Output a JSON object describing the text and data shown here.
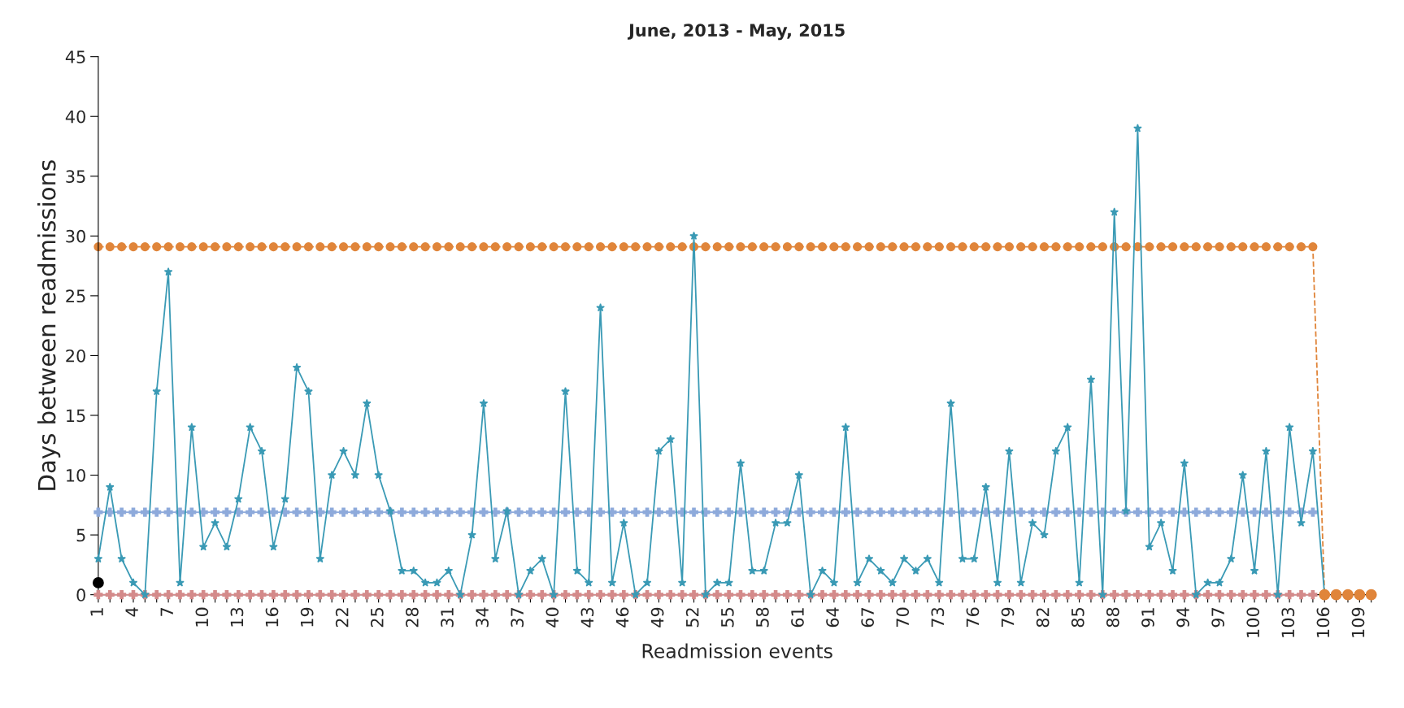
{
  "chart_data": {
    "type": "line",
    "title": "June, 2013 - May, 2015",
    "xlabel": "Readmission events",
    "ylabel": "Days between readmissions",
    "xlim": [
      1,
      110.4
    ],
    "ylim": [
      0,
      45
    ],
    "yticks": [
      0,
      5,
      10,
      15,
      20,
      25,
      30,
      35,
      40,
      45
    ],
    "xticks": [
      1,
      {
        "value": 2,
        "label": null
      },
      {
        "value": 3,
        "label": null
      },
      4,
      {
        "value": 5,
        "label": null
      },
      {
        "value": 6,
        "label": null
      },
      7,
      {
        "value": 8,
        "label": null
      },
      {
        "value": 9,
        "label": null
      },
      10,
      {
        "value": 11,
        "label": null
      },
      {
        "value": 12,
        "label": null
      },
      13,
      {
        "value": 14,
        "label": null
      },
      {
        "value": 15,
        "label": null
      },
      16,
      {
        "value": 17,
        "label": null
      },
      {
        "value": 18,
        "label": null
      },
      19,
      {
        "value": 20,
        "label": null
      },
      {
        "value": 21,
        "label": null
      },
      22,
      {
        "value": 23,
        "label": null
      },
      {
        "value": 24,
        "label": null
      },
      25,
      {
        "value": 26,
        "label": null
      },
      {
        "value": 27,
        "label": null
      },
      28,
      {
        "value": 29,
        "label": null
      },
      {
        "value": 30,
        "label": null
      },
      31,
      {
        "value": 32,
        "label": null
      },
      {
        "value": 33,
        "label": null
      },
      34,
      {
        "value": 35,
        "label": null
      },
      {
        "value": 36,
        "label": null
      },
      37,
      {
        "value": 38,
        "label": null
      },
      {
        "value": 39,
        "label": null
      },
      40,
      {
        "value": 41,
        "label": null
      },
      {
        "value": 42,
        "label": null
      },
      43,
      {
        "value": 44,
        "label": null
      },
      {
        "value": 45,
        "label": null
      },
      46,
      {
        "value": 47,
        "label": null
      },
      {
        "value": 48,
        "label": null
      },
      49,
      {
        "value": 50,
        "label": null
      },
      {
        "value": 51,
        "label": null
      },
      52,
      {
        "value": 53,
        "label": null
      },
      {
        "value": 54,
        "label": null
      },
      55,
      {
        "value": 56,
        "label": null
      },
      {
        "value": 57,
        "label": null
      },
      58,
      {
        "value": 59,
        "label": null
      },
      {
        "value": 60,
        "label": null
      },
      61,
      {
        "value": 62,
        "label": null
      },
      {
        "value": 63,
        "label": null
      },
      64,
      {
        "value": 65,
        "label": null
      },
      {
        "value": 66,
        "label": null
      },
      67,
      {
        "value": 68,
        "label": null
      },
      {
        "value": 69,
        "label": null
      },
      70,
      {
        "value": 71,
        "label": null
      },
      {
        "value": 72,
        "label": null
      },
      73,
      {
        "value": 74,
        "label": null
      },
      {
        "value": 75,
        "label": null
      },
      76,
      {
        "value": 77,
        "label": null
      },
      {
        "value": 78,
        "label": null
      },
      79,
      {
        "value": 80,
        "label": null
      },
      {
        "value": 81,
        "label": null
      },
      82,
      {
        "value": 83,
        "label": null
      },
      {
        "value": 84,
        "label": null
      },
      85,
      {
        "value": 86,
        "label": null
      },
      {
        "value": 87,
        "label": null
      },
      88,
      {
        "value": 89,
        "label": null
      },
      {
        "value": 90,
        "label": null
      },
      91,
      {
        "value": 92,
        "label": null
      },
      {
        "value": 93,
        "label": null
      },
      94,
      {
        "value": 95,
        "label": null
      },
      {
        "value": 96,
        "label": null
      },
      97,
      {
        "value": 98,
        "label": null
      },
      {
        "value": 99,
        "label": null
      },
      100,
      {
        "value": 101,
        "label": null
      },
      {
        "value": 102,
        "label": null
      },
      103,
      {
        "value": 104,
        "label": null
      },
      {
        "value": 105,
        "label": null
      },
      106,
      {
        "value": 107,
        "label": null
      },
      {
        "value": 108,
        "label": null
      },
      109,
      {
        "value": 110,
        "label": null
      }
    ],
    "grid": false,
    "legend": false,
    "series": [
      {
        "color": "#e0853a",
        "marker": "circle",
        "line_style": "dashed",
        "x": [
          1,
          2,
          3,
          4,
          5,
          6,
          7,
          8,
          9,
          10,
          11,
          12,
          13,
          14,
          15,
          16,
          17,
          18,
          19,
          20,
          21,
          22,
          23,
          24,
          25,
          26,
          27,
          28,
          29,
          30,
          31,
          32,
          33,
          34,
          35,
          36,
          37,
          38,
          39,
          40,
          41,
          42,
          43,
          44,
          45,
          46,
          47,
          48,
          49,
          50,
          51,
          52,
          53,
          54,
          55,
          56,
          57,
          58,
          59,
          60,
          61,
          62,
          63,
          64,
          65,
          66,
          67,
          68,
          69,
          70,
          71,
          72,
          73,
          74,
          75,
          76,
          77,
          78,
          79,
          80,
          81,
          82,
          83,
          84,
          85,
          86,
          87,
          88,
          89,
          90,
          91,
          92,
          93,
          94,
          95,
          96,
          97,
          98,
          99,
          100,
          101,
          102,
          103,
          104,
          105,
          106
        ],
        "values": [
          29.1,
          29.1,
          29.1,
          29.1,
          29.1,
          29.1,
          29.1,
          29.1,
          29.1,
          29.1,
          29.1,
          29.1,
          29.1,
          29.1,
          29.1,
          29.1,
          29.1,
          29.1,
          29.1,
          29.1,
          29.1,
          29.1,
          29.1,
          29.1,
          29.1,
          29.1,
          29.1,
          29.1,
          29.1,
          29.1,
          29.1,
          29.1,
          29.1,
          29.1,
          29.1,
          29.1,
          29.1,
          29.1,
          29.1,
          29.1,
          29.1,
          29.1,
          29.1,
          29.1,
          29.1,
          29.1,
          29.1,
          29.1,
          29.1,
          29.1,
          29.1,
          29.1,
          29.1,
          29.1,
          29.1,
          29.1,
          29.1,
          29.1,
          29.1,
          29.1,
          29.1,
          29.1,
          29.1,
          29.1,
          29.1,
          29.1,
          29.1,
          29.1,
          29.1,
          29.1,
          29.1,
          29.1,
          29.1,
          29.1,
          29.1,
          29.1,
          29.1,
          29.1,
          29.1,
          29.1,
          29.1,
          29.1,
          29.1,
          29.1,
          29.1,
          29.1,
          29.1,
          29.1,
          29.1,
          29.1,
          29.1,
          29.1,
          29.1,
          29.1,
          29.1,
          29.1,
          29.1,
          29.1,
          29.1,
          29.1,
          29.1,
          29.1,
          29.1,
          29.1,
          29.1,
          0
        ]
      },
      {
        "color": "#8eaadb",
        "marker": "cross",
        "line_style": "solid",
        "x": [
          1,
          2,
          3,
          4,
          5,
          6,
          7,
          8,
          9,
          10,
          11,
          12,
          13,
          14,
          15,
          16,
          17,
          18,
          19,
          20,
          21,
          22,
          23,
          24,
          25,
          26,
          27,
          28,
          29,
          30,
          31,
          32,
          33,
          34,
          35,
          36,
          37,
          38,
          39,
          40,
          41,
          42,
          43,
          44,
          45,
          46,
          47,
          48,
          49,
          50,
          51,
          52,
          53,
          54,
          55,
          56,
          57,
          58,
          59,
          60,
          61,
          62,
          63,
          64,
          65,
          66,
          67,
          68,
          69,
          70,
          71,
          72,
          73,
          74,
          75,
          76,
          77,
          78,
          79,
          80,
          81,
          82,
          83,
          84,
          85,
          86,
          87,
          88,
          89,
          90,
          91,
          92,
          93,
          94,
          95,
          96,
          97,
          98,
          99,
          100,
          101,
          102,
          103,
          104,
          105
        ],
        "values": [
          6.9,
          6.9,
          6.9,
          6.9,
          6.9,
          6.9,
          6.9,
          6.9,
          6.9,
          6.9,
          6.9,
          6.9,
          6.9,
          6.9,
          6.9,
          6.9,
          6.9,
          6.9,
          6.9,
          6.9,
          6.9,
          6.9,
          6.9,
          6.9,
          6.9,
          6.9,
          6.9,
          6.9,
          6.9,
          6.9,
          6.9,
          6.9,
          6.9,
          6.9,
          6.9,
          6.9,
          6.9,
          6.9,
          6.9,
          6.9,
          6.9,
          6.9,
          6.9,
          6.9,
          6.9,
          6.9,
          6.9,
          6.9,
          6.9,
          6.9,
          6.9,
          6.9,
          6.9,
          6.9,
          6.9,
          6.9,
          6.9,
          6.9,
          6.9,
          6.9,
          6.9,
          6.9,
          6.9,
          6.9,
          6.9,
          6.9,
          6.9,
          6.9,
          6.9,
          6.9,
          6.9,
          6.9,
          6.9,
          6.9,
          6.9,
          6.9,
          6.9,
          6.9,
          6.9,
          6.9,
          6.9,
          6.9,
          6.9,
          6.9,
          6.9,
          6.9,
          6.9,
          6.9,
          6.9,
          6.9,
          6.9,
          6.9,
          6.9,
          6.9,
          6.9,
          6.9,
          6.9,
          6.9,
          6.9,
          6.9,
          6.9,
          6.9,
          6.9,
          6.9,
          6.9
        ]
      },
      {
        "color": "#d48a8a",
        "marker": "cross",
        "line_style": "solid",
        "x": [
          1,
          2,
          3,
          4,
          5,
          6,
          7,
          8,
          9,
          10,
          11,
          12,
          13,
          14,
          15,
          16,
          17,
          18,
          19,
          20,
          21,
          22,
          23,
          24,
          25,
          26,
          27,
          28,
          29,
          30,
          31,
          32,
          33,
          34,
          35,
          36,
          37,
          38,
          39,
          40,
          41,
          42,
          43,
          44,
          45,
          46,
          47,
          48,
          49,
          50,
          51,
          52,
          53,
          54,
          55,
          56,
          57,
          58,
          59,
          60,
          61,
          62,
          63,
          64,
          65,
          66,
          67,
          68,
          69,
          70,
          71,
          72,
          73,
          74,
          75,
          76,
          77,
          78,
          79,
          80,
          81,
          82,
          83,
          84,
          85,
          86,
          87,
          88,
          89,
          90,
          91,
          92,
          93,
          94,
          95,
          96,
          97,
          98,
          99,
          100,
          101,
          102,
          103,
          104,
          105
        ],
        "values": [
          0,
          0,
          0,
          0,
          0,
          0,
          0,
          0,
          0,
          0,
          0,
          0,
          0,
          0,
          0,
          0,
          0,
          0,
          0,
          0,
          0,
          0,
          0,
          0,
          0,
          0,
          0,
          0,
          0,
          0,
          0,
          0,
          0,
          0,
          0,
          0,
          0,
          0,
          0,
          0,
          0,
          0,
          0,
          0,
          0,
          0,
          0,
          0,
          0,
          0,
          0,
          0,
          0,
          0,
          0,
          0,
          0,
          0,
          0,
          0,
          0,
          0,
          0,
          0,
          0,
          0,
          0,
          0,
          0,
          0,
          0,
          0,
          0,
          0,
          0,
          0,
          0,
          0,
          0,
          0,
          0,
          0,
          0,
          0,
          0,
          0,
          0,
          0,
          0,
          0,
          0,
          0,
          0,
          0,
          0,
          0,
          0,
          0,
          0,
          0,
          0,
          0,
          0,
          0,
          0
        ]
      },
      {
        "color": "#3a9ab5",
        "marker": "star",
        "line_style": "solid",
        "x": [
          1,
          2,
          3,
          4,
          5,
          6,
          7,
          8,
          9,
          10,
          11,
          12,
          13,
          14,
          15,
          16,
          17,
          18,
          19,
          20,
          21,
          22,
          23,
          24,
          25,
          26,
          27,
          28,
          29,
          30,
          31,
          32,
          33,
          34,
          35,
          36,
          37,
          38,
          39,
          40,
          41,
          42,
          43,
          44,
          45,
          46,
          47,
          48,
          49,
          50,
          51,
          52,
          53,
          54,
          55,
          56,
          57,
          58,
          59,
          60,
          61,
          62,
          63,
          64,
          65,
          66,
          67,
          68,
          69,
          70,
          71,
          72,
          73,
          74,
          75,
          76,
          77,
          78,
          79,
          80,
          81,
          82,
          83,
          84,
          85,
          86,
          87,
          88,
          89,
          90,
          91,
          92,
          93,
          94,
          95,
          96,
          97,
          98,
          99,
          100,
          101,
          102,
          103,
          104,
          105,
          106
        ],
        "values": [
          3,
          9,
          3,
          1,
          0,
          17,
          27,
          1,
          14,
          4,
          6,
          4,
          8,
          14,
          12,
          4,
          8,
          19,
          17,
          3,
          10,
          12,
          10,
          16,
          10,
          7,
          2,
          2,
          1,
          1,
          2,
          0,
          5,
          16,
          3,
          7,
          0,
          2,
          3,
          0,
          17,
          2,
          1,
          24,
          1,
          6,
          0,
          1,
          12,
          13,
          1,
          30,
          0,
          1,
          1,
          11,
          2,
          2,
          6,
          6,
          10,
          0,
          2,
          1,
          14,
          1,
          3,
          2,
          1,
          3,
          2,
          3,
          1,
          16,
          3,
          3,
          9,
          1,
          12,
          1,
          6,
          5,
          12,
          14,
          1,
          18,
          0,
          32,
          7,
          39,
          4,
          6,
          2,
          11,
          0,
          1,
          1,
          3,
          10,
          2,
          12,
          0,
          14,
          6,
          12,
          0
        ]
      },
      {
        "type": "scatter",
        "color": "#e0853a",
        "marker": "circle",
        "x": [
          106,
          107,
          108,
          109,
          110
        ],
        "values": [
          0,
          0,
          0,
          0,
          0
        ]
      },
      {
        "type": "scatter",
        "color": "#000000",
        "marker": "circle",
        "x": [
          1
        ],
        "values": [
          1
        ]
      }
    ]
  }
}
